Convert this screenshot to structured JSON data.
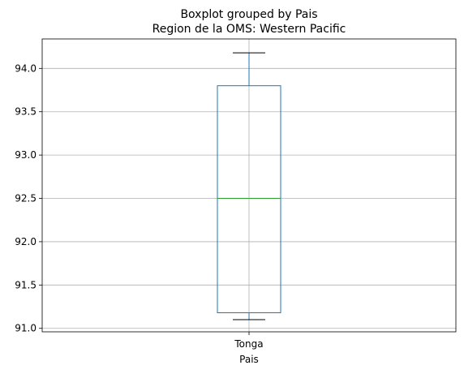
{
  "chart_data": {
    "type": "boxplot",
    "suptitle": "Boxplot grouped by Pais",
    "title": "Region de la OMS: Western Pacific",
    "xlabel": "Pais",
    "ylabel": "",
    "categories": [
      "Tonga"
    ],
    "boxes": [
      {
        "category": "Tonga",
        "whisker_low": 91.1,
        "q1": 91.18,
        "median": 92.5,
        "q3": 93.8,
        "whisker_high": 94.18
      }
    ],
    "ylim": [
      90.96,
      94.34
    ],
    "yticks": [
      91.0,
      91.5,
      92.0,
      92.5,
      93.0,
      93.5,
      94.0
    ],
    "ytick_labels": [
      "91.0",
      "91.5",
      "92.0",
      "92.5",
      "93.0",
      "93.5",
      "94.0"
    ],
    "grid": true,
    "colors": {
      "box": "#1f77b4",
      "median": "#2ca02c",
      "whisker": "#1f77b4",
      "cap": "#000000",
      "grid": "#b0b0b0",
      "spine": "#000000"
    }
  }
}
